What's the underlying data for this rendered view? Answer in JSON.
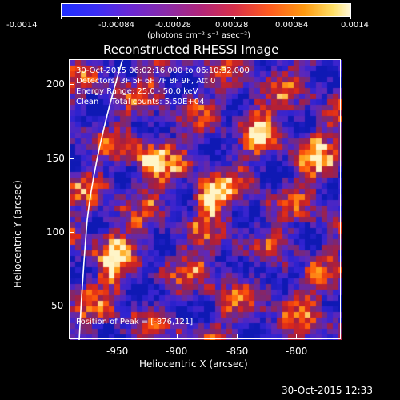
{
  "colorbar": {
    "ticks": [
      "-0.0014",
      "-0.00084",
      "-0.00028",
      "0.00028",
      "0.00084",
      "0.0014"
    ],
    "units_label": "(photons cm⁻² s⁻¹ asec⁻²)"
  },
  "plot": {
    "title": "Reconstructed RHESSI Image",
    "annotations": {
      "time": "30-Oct-2015 06:02:16.000 to 06:10:32.000",
      "detectors": "Detectors: 3F 5F 6F 7F 8F 9F, Att 0",
      "energy": "Energy Range: 25.0 - 50.0 keV",
      "clean": "Clean     Total counts: 5.50E+04",
      "peak": "Position of Peak = [-876,121]"
    },
    "x_axis": {
      "label": "Heliocentric X (arcsec)",
      "ticks": [
        "-950",
        "-900",
        "-850",
        "-800"
      ]
    },
    "y_axis": {
      "label": "Heliocentric Y (arcsec)",
      "ticks": [
        "200",
        "150",
        "100",
        "50"
      ]
    }
  },
  "footer": {
    "timestamp": "30-Oct-2015 12:33"
  },
  "colors": {
    "background": "#000000",
    "foreground": "#ffffff"
  }
}
